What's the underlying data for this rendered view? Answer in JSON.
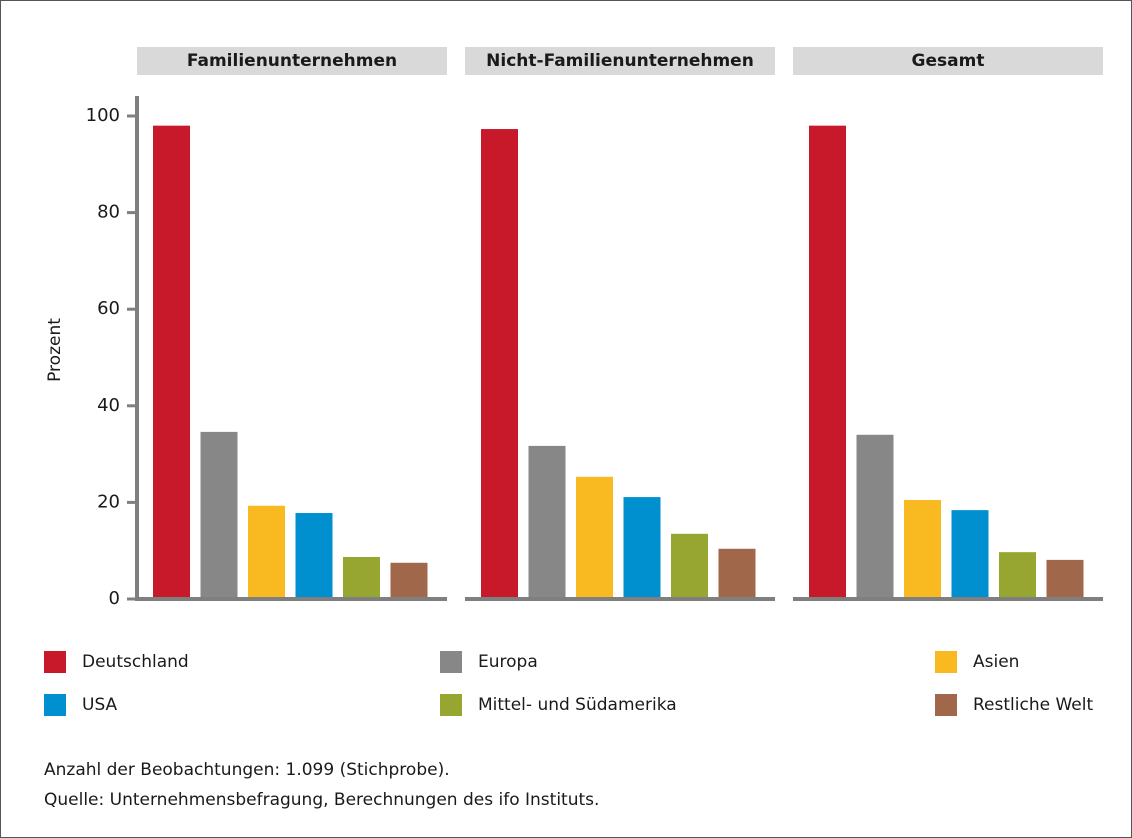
{
  "chart_data": {
    "type": "bar",
    "y_label": "Prozent",
    "categories": [
      "Familienunternehmen",
      "Nicht-Familienunternehmen",
      "Gesamt"
    ],
    "series": [
      {
        "name": "Deutschland",
        "color": "#c8192b",
        "values": [
          98,
          97.3,
          98
        ]
      },
      {
        "name": "Europa",
        "color": "#878787",
        "values": [
          34.6,
          31.7,
          34
        ]
      },
      {
        "name": "Asien",
        "color": "#f9b921",
        "values": [
          19.3,
          25.3,
          20.5
        ]
      },
      {
        "name": "USA",
        "color": "#0090cf",
        "values": [
          17.8,
          21.1,
          18.4
        ]
      },
      {
        "name": "Mittel- und Südamerika",
        "color": "#97a631",
        "values": [
          8.7,
          13.5,
          9.7
        ]
      },
      {
        "name": "Restliche Welt",
        "color": "#a0674b",
        "values": [
          7.5,
          10.4,
          8.1
        ]
      }
    ],
    "ylim": [
      0,
      100
    ],
    "yticks": [
      0,
      20,
      40,
      60,
      80,
      100
    ],
    "grid": false,
    "notes": [
      "Anzahl der Beobachtungen: 1.099 (Stichprobe).",
      "Quelle: Unternehmensbefragung, Berechnungen des ifo Instituts."
    ]
  }
}
